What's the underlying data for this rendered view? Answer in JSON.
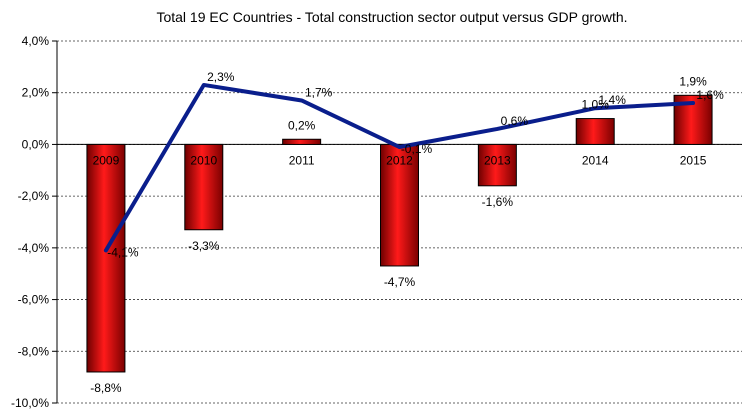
{
  "chart_data": {
    "type": "bar",
    "title": "Total 19 EC Countries - Total construction sector output versus GDP growth.",
    "categories": [
      "2009",
      "2010",
      "2011",
      "2012",
      "2013",
      "2014",
      "2015"
    ],
    "series": [
      {
        "name": "Construction sector output",
        "kind": "bar",
        "color": "#e00000",
        "values": [
          -8.8,
          -3.3,
          0.2,
          -4.7,
          -1.6,
          1.0,
          1.9
        ],
        "labels": [
          "-8,8%",
          "-3,3%",
          "0,2%",
          "-4,7%",
          "-1,6%",
          "1,0%",
          "1,9%"
        ]
      },
      {
        "name": "GDP growth",
        "kind": "line",
        "color": "#0a1e8c",
        "values": [
          -4.1,
          2.3,
          1.7,
          -0.1,
          0.6,
          1.4,
          1.6
        ],
        "labels": [
          "-4,1%",
          "2,3%",
          "1,7%",
          "-0,1%",
          "0,6%",
          "1,4%",
          "1,6%"
        ]
      }
    ],
    "ylim": [
      -10,
      4
    ],
    "yticks": [
      4,
      2,
      0,
      -2,
      -4,
      -6,
      -8,
      -10
    ],
    "ytick_labels": [
      "4,0%",
      "2,0%",
      "0,0%",
      "-2,0%",
      "-4,0%",
      "-6,0%",
      "-8,0%",
      "-10,0%"
    ],
    "xlabel": "",
    "ylabel": "",
    "grid": true,
    "legend": "none"
  }
}
